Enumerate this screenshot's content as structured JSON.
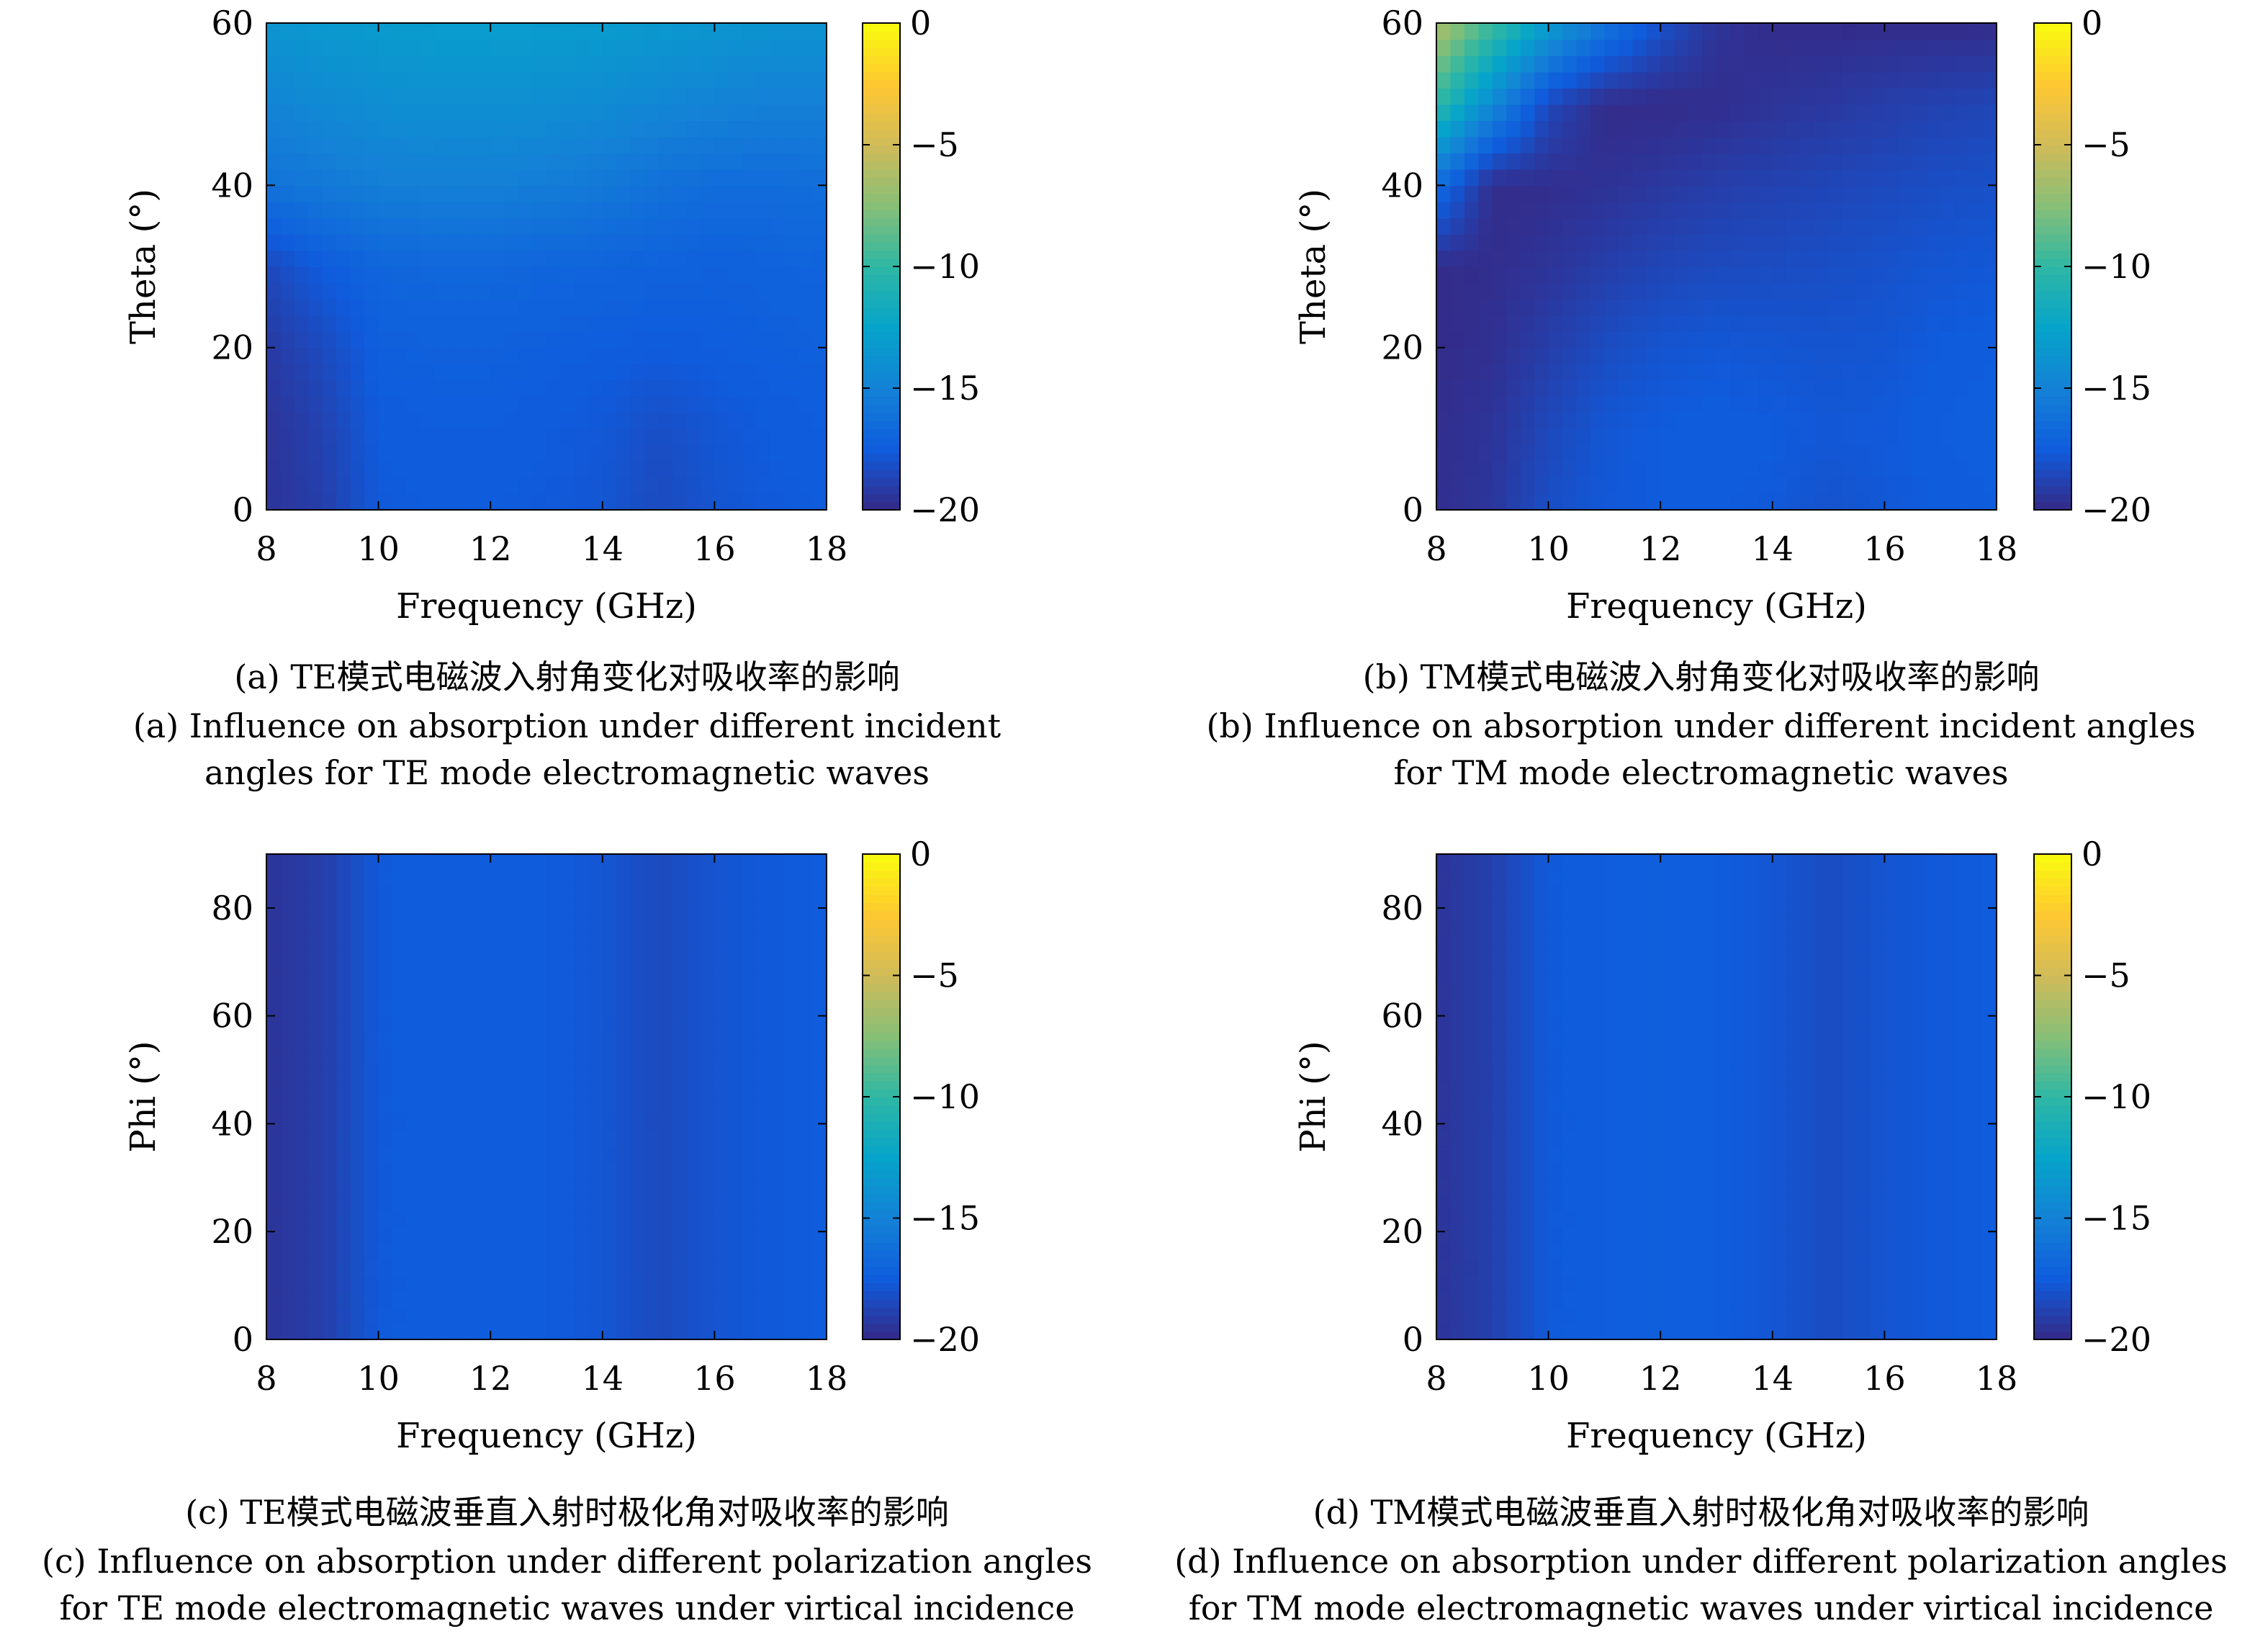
{
  "colors": {
    "colormap": [
      "#352a87",
      "#0f5cdd",
      "#1481d6",
      "#06a4ca",
      "#2eb7a4",
      "#87bf77",
      "#d1bb59",
      "#fec832",
      "#f9fb0e"
    ],
    "axis": "#000000"
  },
  "chart_data": [
    {
      "type": "heatmap",
      "id": "a",
      "caption_zh": "(a) TE模式电磁波入射角变化对吸收率的影响",
      "caption_en": [
        "(a) Influence on absorption under different incident",
        "angles for TE mode electromagnetic waves"
      ],
      "xlabel": "Frequency (GHz)",
      "ylabel": "Theta (°)",
      "xlim": [
        8,
        18
      ],
      "ylim": [
        0,
        60
      ],
      "xticks": [
        "8",
        "10",
        "12",
        "14",
        "16",
        "18"
      ],
      "yticks": [
        "0",
        "20",
        "40",
        "60"
      ],
      "colorbar": {
        "clim": [
          -20,
          0
        ],
        "ticks": [
          "0",
          "−5",
          "−10",
          "−15",
          "−20"
        ]
      },
      "x": [
        8,
        9,
        10,
        11,
        12,
        13,
        14,
        15,
        16,
        17,
        18
      ],
      "y": [
        0,
        10,
        20,
        30,
        40,
        50,
        60
      ],
      "z": [
        [
          -19.5,
          -19.0,
          -17.6,
          -17.5,
          -17.5,
          -17.6,
          -17.8,
          -18.4,
          -17.9,
          -17.6,
          -17.5
        ],
        [
          -19.5,
          -18.8,
          -17.5,
          -17.4,
          -17.4,
          -17.5,
          -17.7,
          -18.2,
          -17.8,
          -17.5,
          -17.4
        ],
        [
          -19.2,
          -18.4,
          -17.3,
          -17.2,
          -17.2,
          -17.3,
          -17.4,
          -17.5,
          -17.4,
          -17.3,
          -17.2
        ],
        [
          -18.5,
          -17.5,
          -16.9,
          -16.8,
          -16.8,
          -16.9,
          -17.0,
          -17.1,
          -17.2,
          -17.1,
          -17.0
        ],
        [
          -16.0,
          -15.6,
          -15.2,
          -15.1,
          -15.1,
          -15.3,
          -15.6,
          -16.1,
          -16.4,
          -16.4,
          -16.3
        ],
        [
          -14.8,
          -14.4,
          -14.1,
          -14.0,
          -14.0,
          -14.1,
          -14.3,
          -14.6,
          -14.9,
          -15.1,
          -15.1
        ],
        [
          -13.6,
          -13.3,
          -13.1,
          -13.0,
          -13.0,
          -13.0,
          -13.1,
          -13.3,
          -13.5,
          -13.7,
          -13.7
        ]
      ]
    },
    {
      "type": "heatmap",
      "id": "b",
      "caption_zh": "(b) TM模式电磁波入射角变化对吸收率的影响",
      "caption_en": [
        "(b) Influence on absorption under different incident angles",
        "for TM mode electromagnetic waves"
      ],
      "xlabel": "Frequency (GHz)",
      "ylabel": "Theta (°)",
      "xlim": [
        8,
        18
      ],
      "ylim": [
        0,
        60
      ],
      "xticks": [
        "8",
        "10",
        "12",
        "14",
        "16",
        "18"
      ],
      "yticks": [
        "0",
        "20",
        "40",
        "60"
      ],
      "colorbar": {
        "clim": [
          -20,
          0
        ],
        "ticks": [
          "0",
          "−5",
          "−10",
          "−15",
          "−20"
        ]
      },
      "x": [
        8,
        9,
        10,
        11,
        12,
        13,
        14,
        15,
        16,
        17,
        18
      ],
      "y": [
        0,
        10,
        20,
        30,
        40,
        50,
        60
      ],
      "z": [
        [
          -19.8,
          -19.4,
          -18.2,
          -17.7,
          -17.5,
          -17.5,
          -17.6,
          -18.0,
          -17.7,
          -17.5,
          -17.4
        ],
        [
          -19.8,
          -19.5,
          -18.5,
          -17.8,
          -17.5,
          -17.4,
          -17.5,
          -17.7,
          -17.6,
          -17.4,
          -17.3
        ],
        [
          -19.9,
          -19.7,
          -19.0,
          -18.3,
          -17.9,
          -17.7,
          -17.8,
          -17.9,
          -17.8,
          -17.5,
          -17.4
        ],
        [
          -19.9,
          -19.8,
          -19.5,
          -19.0,
          -18.6,
          -18.4,
          -18.3,
          -18.2,
          -18.0,
          -17.8,
          -17.7
        ],
        [
          -16.5,
          -19.9,
          -19.8,
          -19.6,
          -19.3,
          -19.0,
          -18.8,
          -18.6,
          -18.4,
          -18.2,
          -18.1
        ],
        [
          -10.0,
          -14.5,
          -18.5,
          -19.9,
          -19.9,
          -19.8,
          -19.5,
          -19.3,
          -19.0,
          -18.8,
          -18.6
        ],
        [
          -6.0,
          -9.5,
          -13.0,
          -15.8,
          -18.0,
          -19.5,
          -19.9,
          -19.9,
          -19.9,
          -19.9,
          -19.9
        ]
      ]
    },
    {
      "type": "heatmap",
      "id": "c",
      "caption_zh": "(c) TE模式电磁波垂直入射时极化角对吸收率的影响",
      "caption_en": [
        "(c) Influence on absorption under different polarization angles",
        "for TE mode electromagnetic waves under virtical incidence"
      ],
      "xlabel": "Frequency (GHz)",
      "ylabel": "Phi (°)",
      "xlim": [
        8,
        18
      ],
      "ylim": [
        0,
        90
      ],
      "xticks": [
        "8",
        "10",
        "12",
        "14",
        "16",
        "18"
      ],
      "yticks": [
        "0",
        "20",
        "40",
        "60",
        "80"
      ],
      "colorbar": {
        "clim": [
          -20,
          0
        ],
        "ticks": [
          "0",
          "−5",
          "−10",
          "−15",
          "−20"
        ]
      },
      "x": [
        8,
        9,
        10,
        11,
        12,
        13,
        14,
        15,
        16,
        17,
        18
      ],
      "y": [
        0,
        90
      ],
      "z": [
        [
          -19.5,
          -19.0,
          -17.6,
          -17.4,
          -17.4,
          -17.5,
          -17.8,
          -18.4,
          -17.9,
          -17.6,
          -17.5
        ],
        [
          -19.5,
          -19.0,
          -17.6,
          -17.4,
          -17.4,
          -17.5,
          -17.8,
          -18.4,
          -17.9,
          -17.6,
          -17.5
        ]
      ]
    },
    {
      "type": "heatmap",
      "id": "d",
      "caption_zh": "(d) TM模式电磁波垂直入射时极化角对吸收率的影响",
      "caption_en": [
        "(d) Influence on absorption under different polarization angles",
        "for TM mode electromagnetic waves under virtical incidence"
      ],
      "xlabel": "Frequency (GHz)",
      "ylabel": "Phi (°)",
      "xlim": [
        8,
        18
      ],
      "ylim": [
        0,
        90
      ],
      "xticks": [
        "8",
        "10",
        "12",
        "14",
        "16",
        "18"
      ],
      "yticks": [
        "0",
        "20",
        "40",
        "60",
        "80"
      ],
      "colorbar": {
        "clim": [
          -20,
          0
        ],
        "ticks": [
          "0",
          "−5",
          "−10",
          "−15",
          "−20"
        ]
      },
      "x": [
        8,
        9,
        10,
        11,
        12,
        13,
        14,
        15,
        16,
        17,
        18
      ],
      "y": [
        0,
        90
      ],
      "z": [
        [
          -19.5,
          -18.9,
          -17.6,
          -17.4,
          -17.3,
          -17.4,
          -17.8,
          -18.3,
          -17.9,
          -17.6,
          -17.5
        ],
        [
          -19.5,
          -18.9,
          -17.6,
          -17.4,
          -17.3,
          -17.4,
          -17.8,
          -18.3,
          -17.9,
          -17.6,
          -17.5
        ]
      ]
    }
  ]
}
